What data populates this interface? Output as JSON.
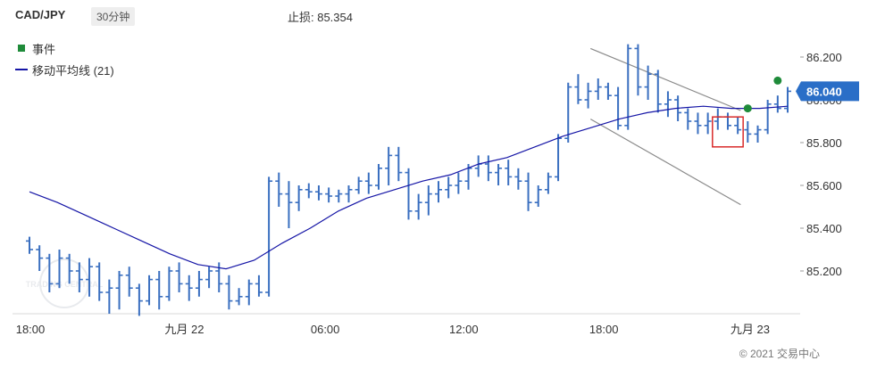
{
  "header": {
    "symbol": "CAD/JPY",
    "timeframe": "30分钟",
    "stop_loss": "止损:  85.354"
  },
  "legend": {
    "event_label": "事件",
    "ma_label": "移动平均线 (21)"
  },
  "watermark": "TRADING CENTRAL",
  "copyright": "© 2021 交易中心",
  "chart_data": {
    "type": "bar",
    "x_ticks": [
      "18:00",
      "九月 22",
      "06:00",
      "12:00",
      "18:00",
      "九月 23"
    ],
    "y_ticks": [
      "85.200",
      "85.400",
      "85.600",
      "85.800",
      "86.000",
      "86.200"
    ],
    "ylim": [
      85.0,
      86.3
    ],
    "current_price": "86.040",
    "stop_loss": 85.354,
    "colors": {
      "bars": "#3a6fc0",
      "ma": "#1515a6",
      "event": "#1f8b3a",
      "price_tag": "#2a6ec7",
      "channel": "#8a8a8a",
      "highlight": "#d92b2b"
    },
    "ohlc": [
      [
        85.34,
        85.36,
        85.28,
        85.3
      ],
      [
        85.3,
        85.32,
        85.2,
        85.26
      ],
      [
        85.26,
        85.28,
        85.1,
        85.14
      ],
      [
        85.14,
        85.3,
        85.12,
        85.26
      ],
      [
        85.26,
        85.28,
        85.14,
        85.2
      ],
      [
        85.2,
        85.24,
        85.1,
        85.16
      ],
      [
        85.16,
        85.26,
        85.08,
        85.22
      ],
      [
        85.22,
        85.24,
        85.06,
        85.1
      ],
      [
        85.1,
        85.16,
        85.0,
        85.12
      ],
      [
        85.12,
        85.2,
        85.02,
        85.18
      ],
      [
        85.18,
        85.22,
        85.08,
        85.12
      ],
      [
        85.12,
        85.14,
        84.99,
        85.06
      ],
      [
        85.06,
        85.18,
        85.04,
        85.16
      ],
      [
        85.16,
        85.2,
        85.02,
        85.08
      ],
      [
        85.08,
        85.22,
        85.06,
        85.2
      ],
      [
        85.2,
        85.24,
        85.1,
        85.14
      ],
      [
        85.14,
        85.18,
        85.06,
        85.12
      ],
      [
        85.12,
        85.2,
        85.08,
        85.16
      ],
      [
        85.16,
        85.22,
        85.12,
        85.2
      ],
      [
        85.2,
        85.24,
        85.1,
        85.14
      ],
      [
        85.14,
        85.18,
        85.02,
        85.06
      ],
      [
        85.06,
        85.12,
        85.04,
        85.08
      ],
      [
        85.08,
        85.16,
        85.04,
        85.14
      ],
      [
        85.14,
        85.18,
        85.08,
        85.1
      ],
      [
        85.1,
        85.64,
        85.08,
        85.62
      ],
      [
        85.62,
        85.66,
        85.5,
        85.56
      ],
      [
        85.56,
        85.62,
        85.4,
        85.52
      ],
      [
        85.52,
        85.6,
        85.48,
        85.58
      ],
      [
        85.58,
        85.61,
        85.54,
        85.57
      ],
      [
        85.57,
        85.6,
        85.53,
        85.56
      ],
      [
        85.56,
        85.59,
        85.52,
        85.55
      ],
      [
        85.55,
        85.58,
        85.52,
        85.56
      ],
      [
        85.56,
        85.6,
        85.52,
        85.58
      ],
      [
        85.58,
        85.64,
        85.56,
        85.62
      ],
      [
        85.62,
        85.66,
        85.56,
        85.6
      ],
      [
        85.6,
        85.7,
        85.58,
        85.68
      ],
      [
        85.68,
        85.78,
        85.6,
        85.74
      ],
      [
        85.74,
        85.78,
        85.62,
        85.66
      ],
      [
        85.66,
        85.68,
        85.44,
        85.48
      ],
      [
        85.48,
        85.56,
        85.44,
        85.52
      ],
      [
        85.52,
        85.6,
        85.46,
        85.56
      ],
      [
        85.56,
        85.62,
        85.52,
        85.58
      ],
      [
        85.58,
        85.64,
        85.54,
        85.6
      ],
      [
        85.6,
        85.66,
        85.56,
        85.62
      ],
      [
        85.62,
        85.7,
        85.58,
        85.68
      ],
      [
        85.68,
        85.74,
        85.64,
        85.7
      ],
      [
        85.7,
        85.74,
        85.62,
        85.66
      ],
      [
        85.66,
        85.7,
        85.6,
        85.68
      ],
      [
        85.68,
        85.72,
        85.6,
        85.64
      ],
      [
        85.64,
        85.68,
        85.58,
        85.62
      ],
      [
        85.62,
        85.66,
        85.48,
        85.52
      ],
      [
        85.52,
        85.6,
        85.5,
        85.58
      ],
      [
        85.58,
        85.66,
        85.56,
        85.64
      ],
      [
        85.64,
        85.84,
        85.62,
        85.82
      ],
      [
        85.82,
        86.08,
        85.8,
        86.06
      ],
      [
        86.06,
        86.12,
        85.98,
        86.0
      ],
      [
        86.0,
        86.08,
        85.96,
        86.04
      ],
      [
        86.04,
        86.1,
        86.0,
        86.06
      ],
      [
        86.06,
        86.08,
        86.0,
        86.02
      ],
      [
        86.02,
        86.06,
        85.86,
        85.88
      ],
      [
        85.88,
        86.26,
        85.86,
        86.24
      ],
      [
        86.24,
        86.26,
        86.02,
        86.06
      ],
      [
        86.06,
        86.16,
        86.0,
        86.12
      ],
      [
        86.12,
        86.14,
        85.94,
        85.98
      ],
      [
        85.98,
        86.04,
        85.92,
        86.0
      ],
      [
        86.0,
        86.02,
        85.9,
        85.94
      ],
      [
        85.94,
        85.96,
        85.86,
        85.9
      ],
      [
        85.9,
        85.94,
        85.84,
        85.88
      ],
      [
        85.88,
        85.94,
        85.84,
        85.9
      ],
      [
        85.9,
        85.96,
        85.86,
        85.92
      ],
      [
        85.92,
        85.94,
        85.86,
        85.88
      ],
      [
        85.88,
        85.92,
        85.84,
        85.86
      ],
      [
        85.86,
        85.9,
        85.8,
        85.84
      ],
      [
        85.84,
        85.88,
        85.8,
        85.86
      ],
      [
        85.86,
        86.0,
        85.84,
        85.98
      ],
      [
        85.98,
        86.02,
        85.94,
        85.96
      ],
      [
        85.96,
        86.06,
        85.94,
        86.04
      ]
    ],
    "ma": [
      85.57,
      85.52,
      85.46,
      85.4,
      85.34,
      85.28,
      85.23,
      85.21,
      85.25,
      85.33,
      85.4,
      85.48,
      85.54,
      85.58,
      85.62,
      85.65,
      85.7,
      85.73,
      85.78,
      85.83,
      85.87,
      85.91,
      85.94,
      85.96,
      85.97,
      85.96,
      85.96,
      85.97
    ],
    "events": [
      85.96,
      86.09
    ],
    "channel": {
      "upper": [
        86.24,
        85.95
      ],
      "lower": [
        85.91,
        85.51
      ]
    }
  }
}
